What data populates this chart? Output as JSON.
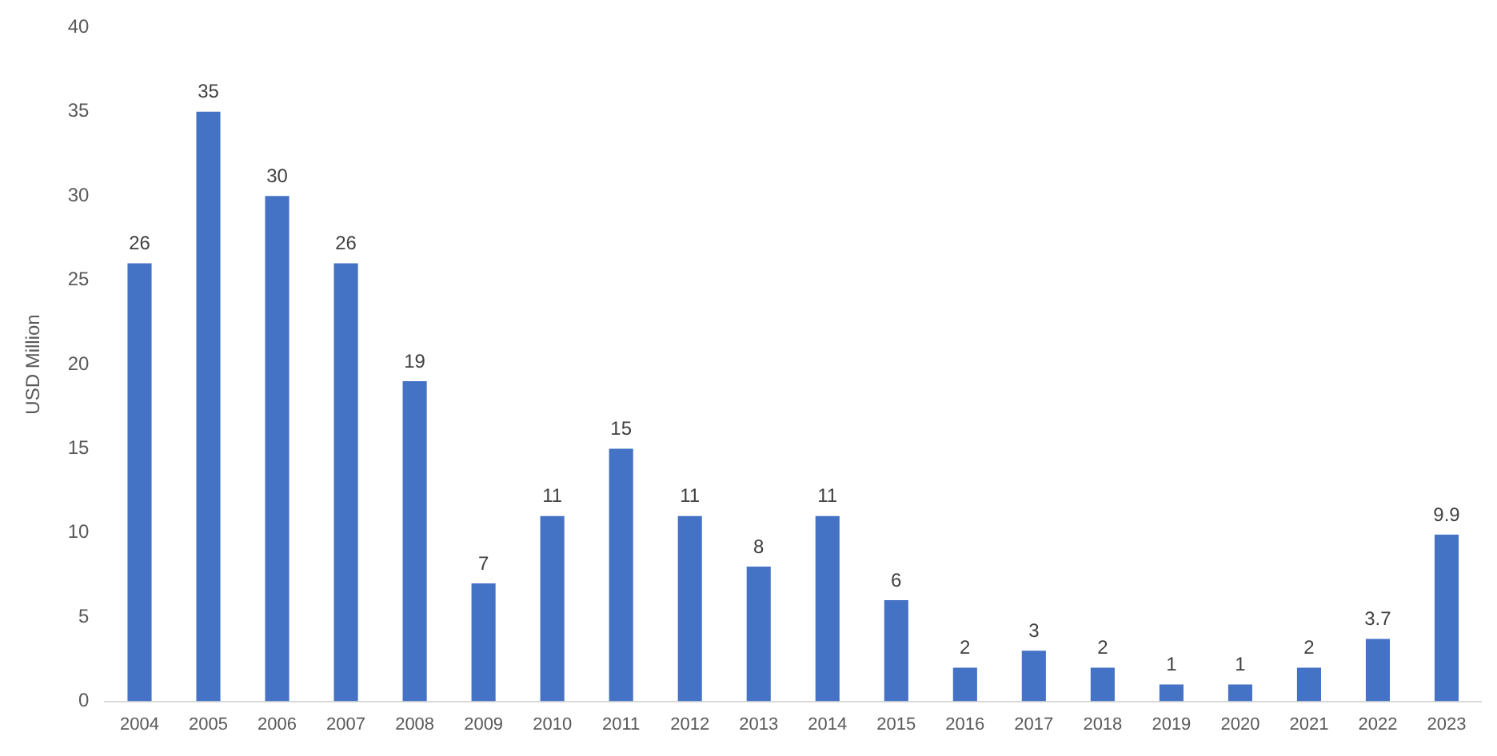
{
  "chart_data": {
    "type": "bar",
    "ylabel": "USD Million",
    "categories": [
      "2004",
      "2005",
      "2006",
      "2007",
      "2008",
      "2009",
      "2010",
      "2011",
      "2012",
      "2013",
      "2014",
      "2015",
      "2016",
      "2017",
      "2018",
      "2019",
      "2020",
      "2021",
      "2022",
      "2023"
    ],
    "values": [
      26,
      35,
      30,
      26,
      19,
      7,
      11,
      15,
      11,
      8,
      11,
      6,
      2,
      3,
      2,
      1,
      1,
      2,
      3.7,
      9.9
    ],
    "color": "#4472c4",
    "ylim": [
      0,
      40
    ],
    "yticks": [
      0,
      5,
      10,
      15,
      20,
      25,
      30,
      35,
      40
    ],
    "grid": false,
    "legend": false,
    "data_labels": true
  }
}
